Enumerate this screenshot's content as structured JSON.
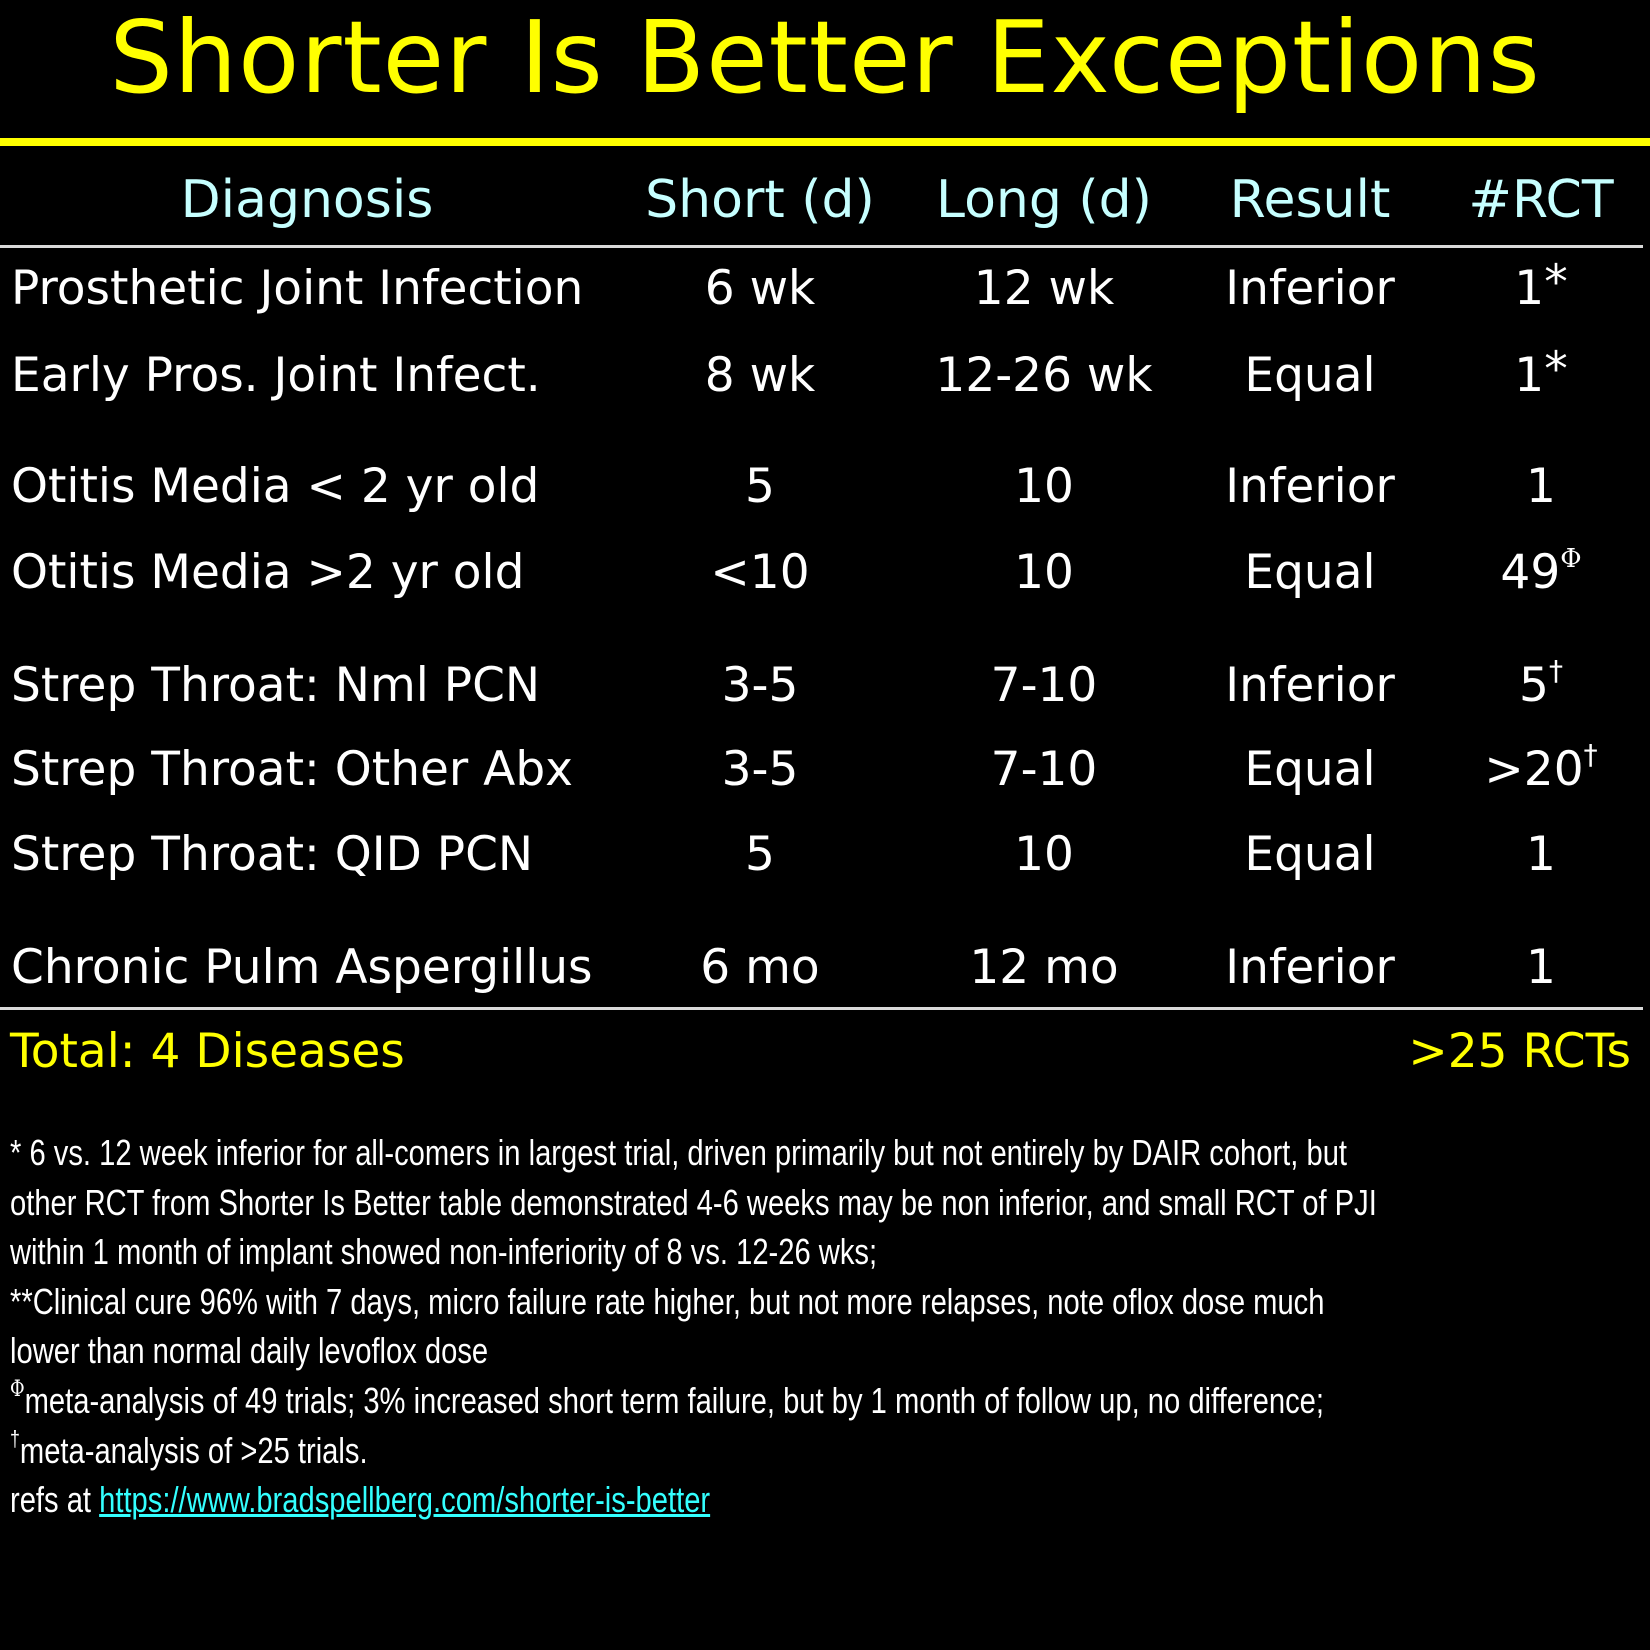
{
  "title": "Shorter Is Better Exceptions",
  "table": {
    "headers": [
      "Diagnosis",
      "Short (d)",
      "Long (d)",
      "Result",
      "#RCT"
    ],
    "rows": [
      {
        "diagnosis": "Prosthetic Joint Infection",
        "short": "6 wk",
        "long": "12 wk",
        "result": "Inferior",
        "rct": "1",
        "rct_mark": "*"
      },
      {
        "diagnosis": "Early Pros. Joint Infect.",
        "short": "8 wk",
        "long": "12-26 wk",
        "result": "Equal",
        "rct": "1",
        "rct_mark": "*"
      },
      {
        "diagnosis": "Otitis Media < 2 yr old",
        "short": "5",
        "long": "10",
        "result": "Inferior",
        "rct": "1",
        "rct_mark": ""
      },
      {
        "diagnosis": "Otitis Media >2 yr old",
        "short": "<10",
        "long": "10",
        "result": "Equal",
        "rct": "49",
        "rct_mark": "Φ"
      },
      {
        "diagnosis": "Strep Throat: Nml PCN",
        "short": "3-5",
        "long": "7-10",
        "result": "Inferior",
        "rct": "5",
        "rct_mark": "†"
      },
      {
        "diagnosis": "Strep Throat: Other Abx",
        "short": "3-5",
        "long": "7-10",
        "result": "Equal",
        "rct": ">20",
        "rct_mark": "†"
      },
      {
        "diagnosis": "Strep Throat: QID PCN",
        "short": "5",
        "long": "10",
        "result": "Equal",
        "rct": "1",
        "rct_mark": ""
      },
      {
        "diagnosis": "Chronic Pulm Aspergillus",
        "short": "6 mo",
        "long": "12 mo",
        "result": "Inferior",
        "rct": "1",
        "rct_mark": ""
      }
    ],
    "total_left": "Total: 4 Diseases",
    "total_right": ">25 RCTs"
  },
  "footnotes": {
    "lines": [
      "* 6 vs. 12 week inferior for all-comers in largest trial, driven primarily but not entirely by DAIR cohort, but",
      "other RCT from Shorter Is Better table demonstrated 4-6 weeks may be non inferior, and small RCT of PJI",
      "within 1 month of implant showed non-inferiority of 8 vs. 12-26 wks;",
      "**Clinical cure 96% with 7 days, micro failure rate higher, but not more relapses, note oflox dose much",
      "lower than normal daily levoflox dose"
    ],
    "phi_mark": "Φ",
    "phi_text": "meta-analysis of 49 trials; 3% increased short term failure, but by 1 month of follow up, no difference;",
    "dagger_mark": "†",
    "dagger_text": "meta-analysis of >25 trials.",
    "refs_prefix": "refs at ",
    "refs_link": "https://www.bradspellberg.com/shorter-is-better"
  },
  "colors": {
    "title": "#ffff00",
    "header": "#c6ffff",
    "total": "#ffff00",
    "link": "#33ffff",
    "background": "#000000"
  }
}
